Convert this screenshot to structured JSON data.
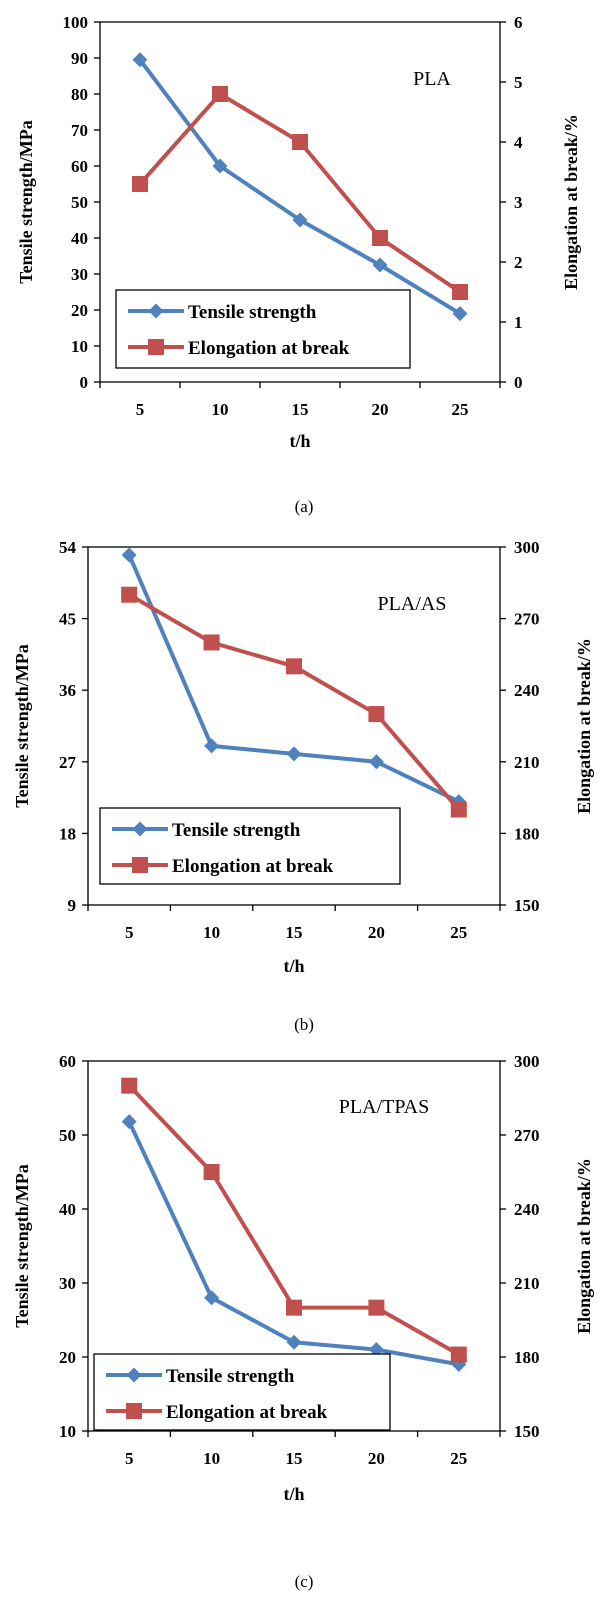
{
  "chart_data": [
    {
      "type": "line",
      "caption": "(a)",
      "material_label": "PLA",
      "xlabel": "t/h",
      "ylabel_left": "Tensile strength/MPa",
      "ylabel_right": "Elongation at break/%",
      "x": [
        5,
        10,
        15,
        20,
        25
      ],
      "xticks": [
        "5",
        "10",
        "15",
        "20",
        "25"
      ],
      "xlim": [
        2.5,
        27.5
      ],
      "ylim_left": [
        0,
        100
      ],
      "yticks_left": [
        "0",
        "10",
        "20",
        "30",
        "40",
        "50",
        "60",
        "70",
        "80",
        "90",
        "100"
      ],
      "ylim_right": [
        0,
        6
      ],
      "yticks_right": [
        "0",
        "1",
        "2",
        "3",
        "4",
        "5",
        "6"
      ],
      "grid": false,
      "legend_position": "bottom-left",
      "series": [
        {
          "name": "Tensile strength",
          "axis": "left",
          "color": "#4f81bd",
          "marker": "diamond",
          "values": [
            89.5,
            60,
            45,
            32.5,
            19
          ]
        },
        {
          "name": "Elongation at break",
          "axis": "right",
          "color": "#c0504d",
          "marker": "square",
          "values": [
            3.3,
            4.8,
            4.0,
            2.4,
            1.5
          ]
        }
      ]
    },
    {
      "type": "line",
      "caption": "(b)",
      "material_label": "PLA/AS",
      "xlabel": "t/h",
      "ylabel_left": "Tensile strength/MPa",
      "ylabel_right": "Elongation at break/%",
      "x": [
        5,
        10,
        15,
        20,
        25
      ],
      "xticks": [
        "5",
        "10",
        "15",
        "20",
        "25"
      ],
      "xlim": [
        2.5,
        27.5
      ],
      "ylim_left": [
        9,
        54
      ],
      "yticks_left": [
        "9",
        "18",
        "27",
        "36",
        "45",
        "54"
      ],
      "ylim_right": [
        150,
        300
      ],
      "yticks_right": [
        "150",
        "180",
        "210",
        "240",
        "270",
        "300"
      ],
      "grid": false,
      "legend_position": "bottom-left",
      "series": [
        {
          "name": "Tensile strength",
          "axis": "left",
          "color": "#4f81bd",
          "marker": "diamond",
          "values": [
            53,
            29,
            28,
            27,
            22
          ]
        },
        {
          "name": "Elongation at break",
          "axis": "right",
          "color": "#c0504d",
          "marker": "square",
          "values": [
            280,
            260,
            250,
            230,
            190
          ]
        }
      ]
    },
    {
      "type": "line",
      "caption": "(c)",
      "material_label": "PLA/TPAS",
      "xlabel": "t/h",
      "ylabel_left": "Tensile strength/MPa",
      "ylabel_right": "Elongation at break/%",
      "x": [
        5,
        10,
        15,
        20,
        25
      ],
      "xticks": [
        "5",
        "10",
        "15",
        "20",
        "25"
      ],
      "xlim": [
        2.5,
        27.5
      ],
      "ylim_left": [
        10,
        60
      ],
      "yticks_left": [
        "10",
        "20",
        "30",
        "40",
        "50",
        "60"
      ],
      "ylim_right": [
        150,
        300
      ],
      "yticks_right": [
        "150",
        "180",
        "210",
        "240",
        "270",
        "300"
      ],
      "grid": false,
      "legend_position": "bottom-left",
      "series": [
        {
          "name": "Tensile strength",
          "axis": "left",
          "color": "#4f81bd",
          "marker": "diamond",
          "values": [
            51.8,
            28,
            22,
            21,
            19
          ]
        },
        {
          "name": "Elongation at break",
          "axis": "right",
          "color": "#c0504d",
          "marker": "square",
          "values": [
            290,
            255,
            200,
            200,
            181
          ]
        }
      ]
    }
  ]
}
